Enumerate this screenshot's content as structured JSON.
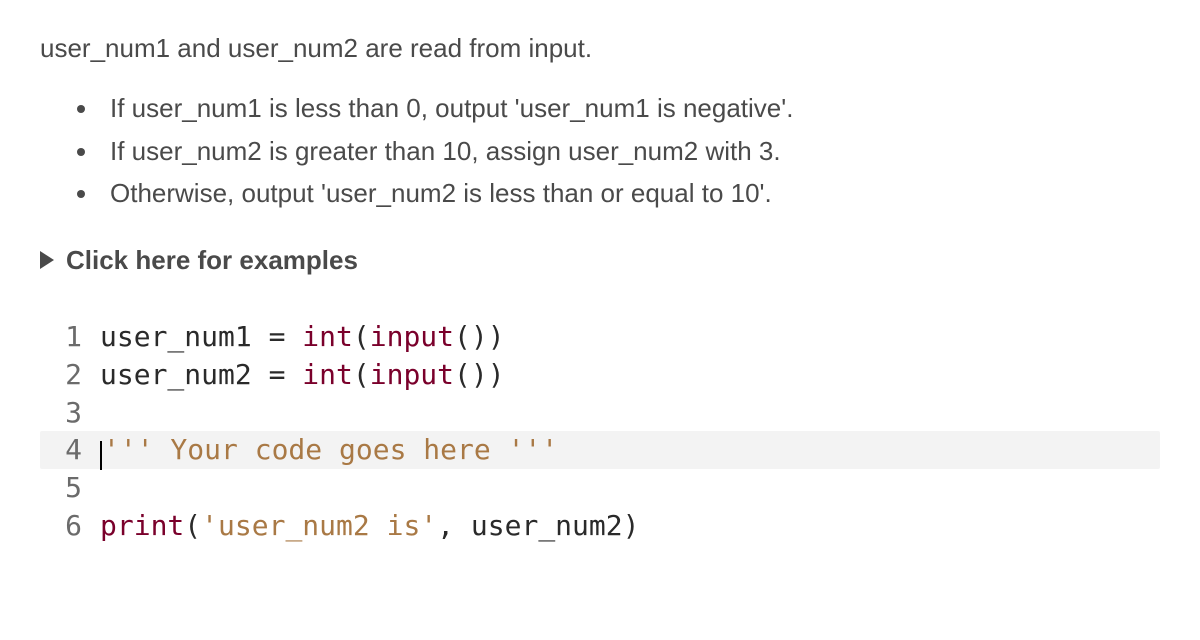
{
  "intro": "user_num1 and user_num2 are read from input.",
  "bullets": [
    "If user_num1 is less than 0, output 'user_num1 is negative'.",
    "If user_num2 is greater than 10, assign user_num2 with 3.",
    "Otherwise, output 'user_num2 is less than or equal to 10'."
  ],
  "examples_label": "Click here for examples",
  "code": {
    "lines": [
      {
        "n": "1",
        "highlight": false,
        "caret": false,
        "tokens": [
          {
            "t": "user_num1 ",
            "c": "k-text"
          },
          {
            "t": "=",
            "c": "k-punct"
          },
          {
            "t": " ",
            "c": "k-text"
          },
          {
            "t": "int",
            "c": "k-builtin"
          },
          {
            "t": "(",
            "c": "k-punct"
          },
          {
            "t": "input",
            "c": "k-builtin"
          },
          {
            "t": "())",
            "c": "k-punct"
          }
        ]
      },
      {
        "n": "2",
        "highlight": false,
        "caret": false,
        "tokens": [
          {
            "t": "user_num2 ",
            "c": "k-text"
          },
          {
            "t": "=",
            "c": "k-punct"
          },
          {
            "t": " ",
            "c": "k-text"
          },
          {
            "t": "int",
            "c": "k-builtin"
          },
          {
            "t": "(",
            "c": "k-punct"
          },
          {
            "t": "input",
            "c": "k-builtin"
          },
          {
            "t": "())",
            "c": "k-punct"
          }
        ]
      },
      {
        "n": "3",
        "highlight": false,
        "caret": false,
        "tokens": []
      },
      {
        "n": "4",
        "highlight": true,
        "caret": true,
        "tokens": [
          {
            "t": "''' Your code goes here '''",
            "c": "k-str"
          }
        ]
      },
      {
        "n": "5",
        "highlight": false,
        "caret": false,
        "tokens": []
      },
      {
        "n": "6",
        "highlight": false,
        "caret": false,
        "tokens": [
          {
            "t": "print",
            "c": "k-builtin"
          },
          {
            "t": "(",
            "c": "k-punct"
          },
          {
            "t": "'user_num2 is'",
            "c": "k-str"
          },
          {
            "t": ", user_num2",
            "c": "k-text"
          },
          {
            "t": ")",
            "c": "k-punct"
          }
        ]
      }
    ]
  }
}
